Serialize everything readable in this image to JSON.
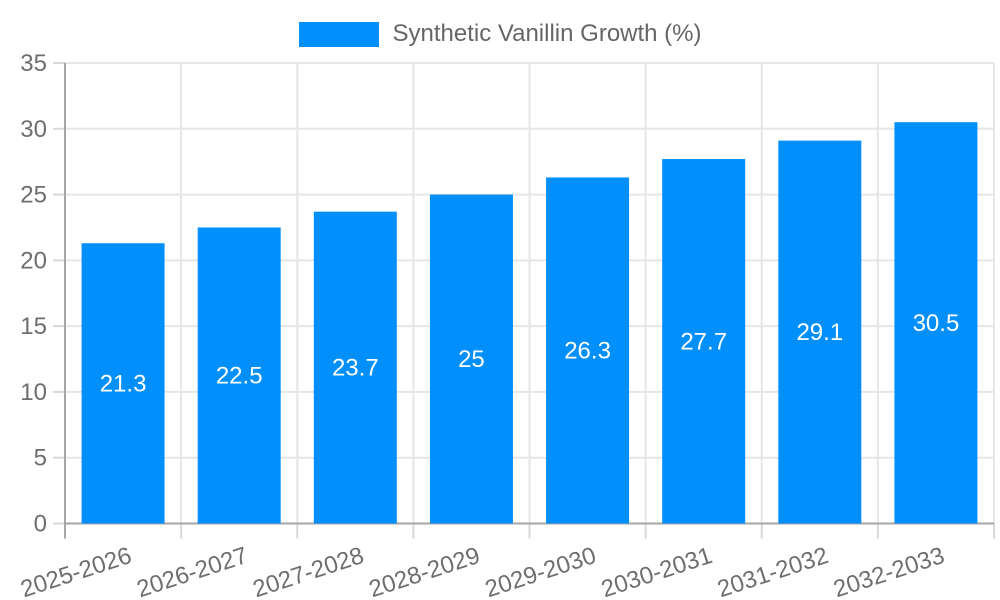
{
  "chart_data": {
    "type": "bar",
    "legend": "Synthetic Vanillin Growth (%)",
    "categories": [
      "2025-2026",
      "2026-2027",
      "2027-2028",
      "2028-2029",
      "2029-2030",
      "2030-2031",
      "2031-2032",
      "2032-2033"
    ],
    "values": [
      21.3,
      22.5,
      23.7,
      25,
      26.3,
      27.7,
      29.1,
      30.5
    ],
    "value_labels": [
      "21.3",
      "22.5",
      "23.7",
      "25",
      "26.3",
      "27.7",
      "29.1",
      "30.5"
    ],
    "ylim": [
      0,
      35
    ],
    "yticks": [
      0,
      5,
      10,
      15,
      20,
      25,
      30,
      35
    ],
    "ytick_labels": [
      "0",
      "5",
      "10",
      "15",
      "20",
      "25",
      "30",
      "35"
    ],
    "grid": "horizontal and vertical light gridlines",
    "legend_position": "top-center",
    "xlabel": "",
    "ylabel": "",
    "colors": {
      "bar": "#008FFB",
      "bar_value_label": "#ffffff",
      "axis_line": "#a6a6a6",
      "grid_line": "#e6e6e6",
      "tick_mark": "#d9d9d9",
      "tick_label": "#6e6e6e",
      "legend_text": "#666666"
    }
  }
}
